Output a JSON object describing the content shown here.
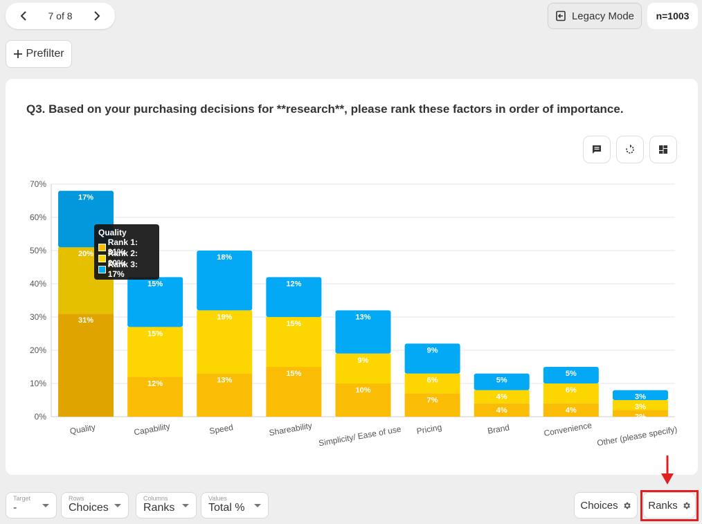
{
  "pager": {
    "count_text": "7 of 8"
  },
  "header": {
    "legacy_label": "Legacy Mode",
    "n_label": "n=1003"
  },
  "prefilter": {
    "label": "Prefilter"
  },
  "question": {
    "text": "Q3. Based on your purchasing decisions for **research**, please rank these factors in order of importance."
  },
  "tooltip": {
    "title": "Quality",
    "rows": [
      "Rank 1: 31%",
      "Rank 2: 20%",
      "Rank 3: 17%"
    ]
  },
  "bottom": {
    "target": {
      "small": "Target",
      "value": "-"
    },
    "rows": {
      "small": "Rows",
      "value": "Choices"
    },
    "columns": {
      "small": "Columns",
      "value": "Ranks"
    },
    "values": {
      "small": "Values",
      "value": "Total %"
    },
    "choices_btn": "Choices",
    "ranks_btn": "Ranks"
  },
  "colors": {
    "rank1": "#fbbc05",
    "rank1_highlight": "#e0a400",
    "rank2": "#fdd600",
    "rank2_highlight": "#e4c000",
    "rank3": "#03a9f4",
    "rank3_highlight": "#0398db",
    "grid": "#e6e6e6",
    "annotation": "#e02020"
  },
  "chart_data": {
    "type": "bar",
    "stacked": true,
    "categories": [
      "Quality",
      "Capability",
      "Speed",
      "Shareability",
      "Simplicity/ Ease of use",
      "Pricing",
      "Brand",
      "Convenience",
      "Other (please specify)"
    ],
    "series": [
      {
        "name": "Rank 1",
        "values": [
          31,
          12,
          13,
          15,
          10,
          7,
          4,
          4,
          2
        ]
      },
      {
        "name": "Rank 2",
        "values": [
          20,
          15,
          19,
          15,
          9,
          6,
          4,
          6,
          3
        ]
      },
      {
        "name": "Rank 3",
        "values": [
          17,
          15,
          18,
          12,
          13,
          9,
          5,
          5,
          3
        ]
      }
    ],
    "data_labels": [
      [
        "31%",
        "20%",
        "17%"
      ],
      [
        "12%",
        "15%",
        "15%"
      ],
      [
        "13%",
        "19%",
        "18%"
      ],
      [
        "15%",
        "15%",
        "12%"
      ],
      [
        "10%",
        "9%",
        "13%"
      ],
      [
        "7%",
        "6%",
        "9%"
      ],
      [
        "4%",
        "4%",
        "5%"
      ],
      [
        "4%",
        "6%",
        "5%"
      ],
      [
        "2%",
        "3%",
        "3%"
      ]
    ],
    "yticks": [
      "0%",
      "10%",
      "20%",
      "30%",
      "40%",
      "50%",
      "60%",
      "70%"
    ],
    "ylim": [
      0,
      70
    ],
    "grid": true,
    "highlighted_category": "Quality"
  }
}
